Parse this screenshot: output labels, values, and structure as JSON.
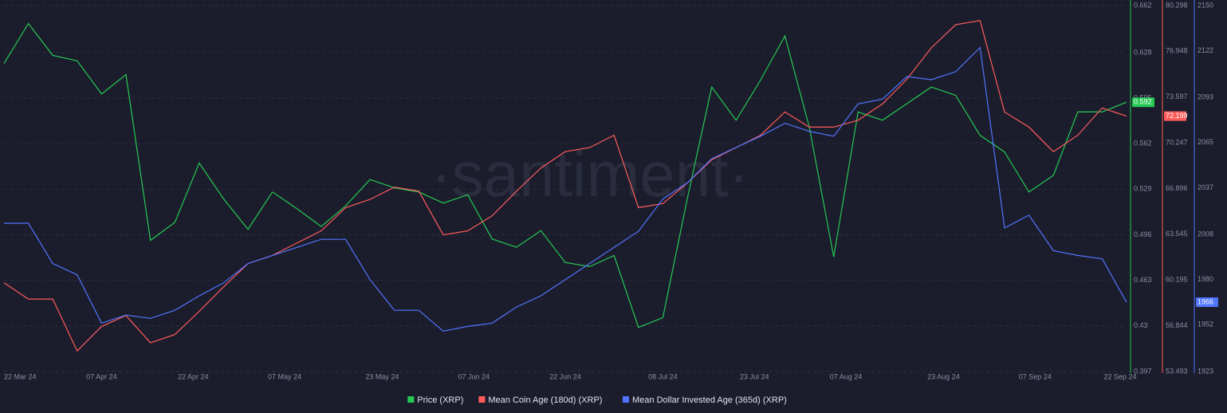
{
  "chart_data": {
    "type": "line",
    "watermark": "·santiment·",
    "x": [
      "22 Mar 24",
      "26 Mar 24",
      "30 Mar 24",
      "03 Apr 24",
      "07 Apr 24",
      "11 Apr 24",
      "15 Apr 24",
      "19 Apr 24",
      "23 Apr 24",
      "27 Apr 24",
      "01 May 24",
      "05 May 24",
      "09 May 24",
      "13 May 24",
      "17 May 24",
      "21 May 24",
      "25 May 24",
      "29 May 24",
      "02 Jun 24",
      "06 Jun 24",
      "10 Jun 24",
      "14 Jun 24",
      "18 Jun 24",
      "22 Jun 24",
      "26 Jun 24",
      "30 Jun 24",
      "04 Jul 24",
      "08 Jul 24",
      "12 Jul 24",
      "16 Jul 24",
      "20 Jul 24",
      "24 Jul 24",
      "28 Jul 24",
      "01 Aug 24",
      "05 Aug 24",
      "09 Aug 24",
      "13 Aug 24",
      "17 Aug 24",
      "21 Aug 24",
      "25 Aug 24",
      "29 Aug 24",
      "02 Sep 24",
      "06 Sep 24",
      "10 Sep 24",
      "14 Sep 24",
      "18 Sep 24",
      "22 Sep 24"
    ],
    "xlim": [
      "22 Mar 24",
      "22 Sep 24"
    ],
    "xticks": [
      "22 Mar 24",
      "07 Apr 24",
      "22 Apr 24",
      "07 May 24",
      "23 May 24",
      "07 Jun 24",
      "22 Jun 24",
      "08 Jul 24",
      "23 Jul 24",
      "07 Aug 24",
      "23 Aug 24",
      "07 Sep 24",
      "22 Sep 24"
    ],
    "ylim": [
      0.397,
      0.662
    ],
    "yticks": [
      0.662,
      0.628,
      0.595,
      0.562,
      0.529,
      0.496,
      0.463,
      0.43,
      0.397
    ],
    "y2lim": [
      53.493,
      80.298
    ],
    "y2ticks": [
      80.298,
      76.948,
      73.597,
      70.247,
      66.896,
      63.545,
      60.195,
      56.844,
      53.493
    ],
    "y3lim": [
      1923,
      2150
    ],
    "y3ticks": [
      2150,
      2122,
      2093,
      2065,
      2037,
      2008,
      1980,
      1952,
      1923
    ],
    "grid": true,
    "series": [
      {
        "name": "Price (XRP)",
        "color": "#26c953",
        "axis": "y",
        "values": [
          0.62,
          0.649,
          0.626,
          0.622,
          0.598,
          0.612,
          0.492,
          0.505,
          0.548,
          0.522,
          0.5,
          0.527,
          0.515,
          0.502,
          0.517,
          0.536,
          0.53,
          0.527,
          0.519,
          0.525,
          0.493,
          0.487,
          0.499,
          0.476,
          0.473,
          0.481,
          0.429,
          0.436,
          0.522,
          0.603,
          0.579,
          0.608,
          0.64,
          0.574,
          0.48,
          0.585,
          0.579,
          0.591,
          0.603,
          0.597,
          0.568,
          0.556,
          0.527,
          0.539,
          0.585,
          0.585,
          0.592
        ]
      },
      {
        "name": "Mean Coin Age (180d) (XRP)",
        "color": "#ff5b5b",
        "axis": "y2",
        "values": [
          60.0,
          58.8,
          58.8,
          55.0,
          56.8,
          57.6,
          55.6,
          56.2,
          57.9,
          59.7,
          61.4,
          62.0,
          62.9,
          63.8,
          65.5,
          66.1,
          67.0,
          66.7,
          63.5,
          63.8,
          64.9,
          66.7,
          68.4,
          69.6,
          69.9,
          70.8,
          65.5,
          65.8,
          67.3,
          69.0,
          69.9,
          70.8,
          72.5,
          71.4,
          71.4,
          71.9,
          73.1,
          74.9,
          77.2,
          78.9,
          79.2,
          72.5,
          71.4,
          69.6,
          70.8,
          72.8,
          72.199
        ]
      },
      {
        "name": "Mean Dollar Invested Age (365d) (XRP)",
        "color": "#5275ff",
        "axis": "y3",
        "values": [
          2015,
          2015,
          1990,
          1983,
          1953,
          1958,
          1956,
          1961,
          1970,
          1978,
          1990,
          1995,
          2000,
          2005,
          2005,
          1980,
          1961,
          1961,
          1948,
          1951,
          1953,
          1963,
          1970,
          1980,
          1990,
          2000,
          2010,
          2030,
          2040,
          2055,
          2062,
          2069,
          2077,
          2072,
          2069,
          2089,
          2092,
          2106,
          2104,
          2109,
          2124,
          2012,
          2020,
          1998,
          1995,
          1993,
          1966
        ]
      }
    ]
  }
}
